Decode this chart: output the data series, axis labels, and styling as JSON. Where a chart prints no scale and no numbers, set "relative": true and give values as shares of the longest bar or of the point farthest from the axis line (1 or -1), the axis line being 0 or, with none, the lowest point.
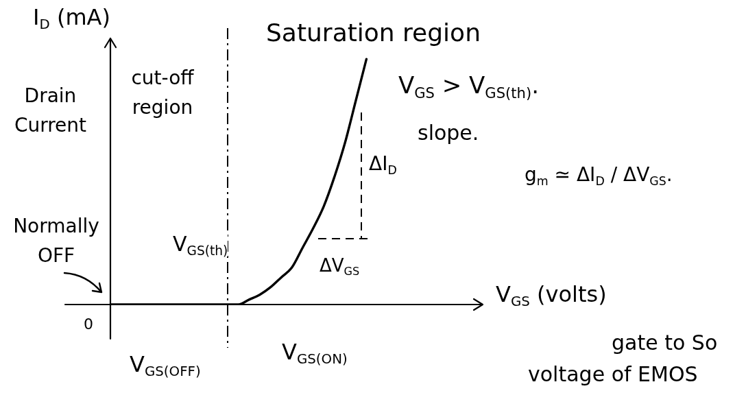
{
  "chart_data": {
    "type": "line",
    "ylabel": "I$_{D}$ (mA)",
    "xlabel": "V$_{GS}$ (volts)",
    "categories": [
      null,
      null,
      null,
      null,
      null,
      null,
      null,
      null,
      null,
      null,
      null,
      null,
      null,
      null,
      null,
      null,
      null,
      null,
      null,
      null,
      null,
      null,
      null,
      null,
      null,
      null,
      null,
      null,
      null,
      null,
      null,
      null,
      null,
      null,
      null
    ],
    "values": [
      0,
      0,
      0,
      0,
      0,
      0,
      0,
      0,
      0,
      0,
      0,
      0,
      0,
      0.02,
      0.04,
      0.07,
      0.11,
      0.15,
      0.23,
      0.31,
      0.4,
      0.52,
      0.66,
      0.83,
      1,
      null,
      null,
      null,
      null,
      null,
      null,
      null,
      null,
      null,
      null
    ],
    "color": "#000000",
    "relative": true,
    "annotations": [
      "Drain Current",
      "cut-off region",
      "Saturation region",
      "V$_{GS}$ > V$_{GS(th)}$.",
      "slope.",
      "ΔI$_{D}$",
      "g$_{m}$ ≃ ΔI$_{D}$ / ΔV$_{GS}$.",
      "Normally OFF",
      "V$_{GS(th)}$",
      "ΔV$_{GS}$",
      "0",
      "V$_{GS(OFF)}$",
      "V$_{GS(ON)}$",
      "gate to So",
      "voltage of EMOS"
    ],
    "grid": false,
    "legend": false,
    "marker": "none",
    "line_style": "solid"
  }
}
